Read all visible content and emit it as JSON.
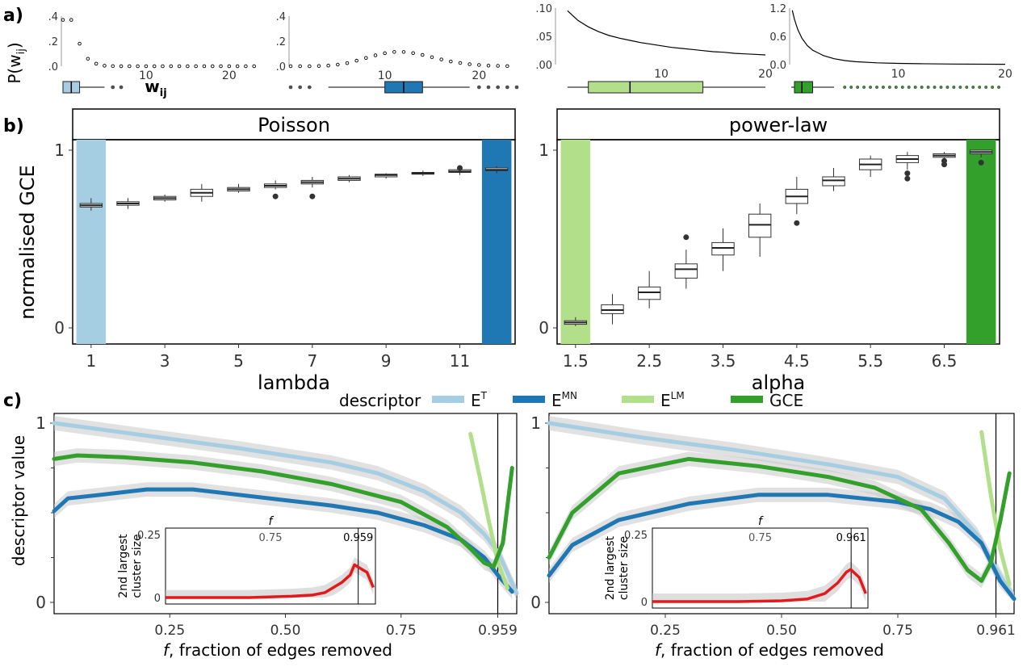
{
  "panel_labels": {
    "a": "a)",
    "b": "b)",
    "c": "c)"
  },
  "colors": {
    "ET": "#a6cee3",
    "EMN": "#1f78b4",
    "ELM": "#b2df8a",
    "GCE": "#33a02c",
    "inset": "#e31a1c",
    "band": "#c8c8c8"
  },
  "chart_data": [
    {
      "id": "a1",
      "type": "scatter",
      "x": [
        0,
        1,
        2,
        3,
        4,
        5,
        6,
        7,
        8,
        9,
        10,
        11,
        12,
        13,
        14,
        15,
        16,
        17,
        18,
        19,
        20,
        21,
        22,
        23
      ],
      "values": [
        0.37,
        0.37,
        0.18,
        0.06,
        0.02,
        0.004,
        0.001,
        0,
        0,
        0,
        0,
        0,
        0,
        0,
        0,
        0,
        0,
        0,
        0,
        0,
        0,
        0,
        0,
        0
      ],
      "ylim": [
        0,
        0.4
      ],
      "xlim": [
        0,
        24
      ],
      "yticks": [
        ".0",
        ".2",
        ".4"
      ],
      "xticks": [
        "10",
        "20"
      ],
      "ylabel": "P(w_ij)",
      "xlabel": "w_ij",
      "box": {
        "q1": 0,
        "median": 1,
        "q3": 2,
        "whisker_hi": 5,
        "outliers": [
          6,
          7
        ]
      }
    },
    {
      "id": "a2",
      "type": "scatter",
      "x": [
        0,
        1,
        2,
        3,
        4,
        5,
        6,
        7,
        8,
        9,
        10,
        11,
        12,
        13,
        14,
        15,
        16,
        17,
        18,
        19,
        20,
        21,
        22,
        23
      ],
      "values": [
        0,
        0,
        0,
        0.002,
        0.005,
        0.013,
        0.025,
        0.044,
        0.066,
        0.087,
        0.104,
        0.114,
        0.114,
        0.105,
        0.09,
        0.072,
        0.054,
        0.038,
        0.026,
        0.016,
        0.01,
        0.005,
        0.003,
        0.001
      ],
      "ylim": [
        0,
        0.4
      ],
      "xlim": [
        0,
        24
      ],
      "yticks": [
        ".0",
        ".2",
        ".4"
      ],
      "xticks": [
        "10",
        "20"
      ],
      "box": {
        "q1": 10,
        "median": 12,
        "q3": 14,
        "whisker_lo": 4,
        "whisker_hi": 19,
        "outliers": [
          0,
          1,
          2,
          20,
          21,
          22,
          23,
          24
        ]
      }
    },
    {
      "id": "a3",
      "type": "line",
      "x": [
        1,
        2,
        3,
        4,
        5,
        6,
        7,
        8,
        9,
        10,
        11,
        12,
        13,
        14,
        15,
        16,
        17,
        18,
        19,
        20
      ],
      "values": [
        0.1,
        0.082,
        0.07,
        0.061,
        0.054,
        0.049,
        0.045,
        0.041,
        0.038,
        0.035,
        0.032,
        0.03,
        0.028,
        0.026,
        0.024,
        0.023,
        0.021,
        0.02,
        0.019,
        0.018
      ],
      "ylim": [
        0,
        0.105
      ],
      "xlim": [
        0,
        20
      ],
      "yticks": [
        ".00",
        ".05",
        ".10"
      ],
      "xticks": [
        "10",
        "20"
      ],
      "box": {
        "q1": 3,
        "median": 7,
        "q3": 14,
        "whisker_lo": 1,
        "whisker_hi": 20,
        "outliers": []
      }
    },
    {
      "id": "a4",
      "type": "line",
      "x": [
        0.1,
        0.3,
        0.6,
        1,
        1.5,
        2,
        3,
        4,
        5,
        6,
        8,
        10,
        12,
        15,
        20
      ],
      "values": [
        1.2,
        1.0,
        0.78,
        0.58,
        0.42,
        0.32,
        0.2,
        0.13,
        0.09,
        0.065,
        0.04,
        0.027,
        0.02,
        0.013,
        0.008
      ],
      "ylim": [
        0,
        1.25
      ],
      "xlim": [
        0,
        20
      ],
      "yticks": [
        "0.0",
        "0.6",
        "1.2"
      ],
      "xticks": [
        "10",
        "20"
      ],
      "box": {
        "q1": 0.3,
        "median": 1,
        "q3": 2,
        "whisker_lo": 0,
        "whisker_hi": 4,
        "outliers": [
          5,
          5.6,
          6.2,
          6.8,
          7.4,
          8,
          8.6,
          9.2,
          9.8,
          10.4,
          11,
          11.6,
          12.2,
          12.8,
          13.4,
          14,
          14.6,
          15.2,
          15.8,
          16.4,
          17,
          17.6,
          18.2,
          18.8,
          19.4
        ]
      }
    },
    {
      "id": "b1",
      "type": "bar",
      "title": "Poisson",
      "xlabel": "lambda",
      "ylabel": "normalised GCE",
      "categories": [
        "1",
        "2",
        "3",
        "4",
        "5",
        "6",
        "7",
        "8",
        "9",
        "10",
        "11",
        "12"
      ],
      "xticks": [
        "1",
        "3",
        "5",
        "7",
        "9",
        "11"
      ],
      "yticks": [
        "0",
        "1"
      ],
      "ylim": [
        0,
        1
      ],
      "series": [
        {
          "stat": "median",
          "values": [
            0.69,
            0.7,
            0.73,
            0.76,
            0.78,
            0.8,
            0.82,
            0.84,
            0.86,
            0.87,
            0.88,
            0.89
          ]
        },
        {
          "stat": "q1",
          "values": [
            0.68,
            0.69,
            0.72,
            0.74,
            0.77,
            0.79,
            0.81,
            0.83,
            0.85,
            0.865,
            0.875,
            0.885
          ]
        },
        {
          "stat": "q3",
          "values": [
            0.7,
            0.71,
            0.74,
            0.78,
            0.79,
            0.81,
            0.83,
            0.85,
            0.865,
            0.875,
            0.89,
            0.9
          ]
        },
        {
          "stat": "whisker_lo",
          "values": [
            0.66,
            0.67,
            0.71,
            0.71,
            0.76,
            0.78,
            0.79,
            0.82,
            0.84,
            0.855,
            0.86,
            0.87
          ]
        },
        {
          "stat": "whisker_hi",
          "values": [
            0.73,
            0.73,
            0.75,
            0.81,
            0.81,
            0.83,
            0.85,
            0.86,
            0.87,
            0.885,
            0.9,
            0.91
          ]
        }
      ],
      "outliers": [
        [
          5,
          0.74
        ],
        [
          6,
          0.74
        ],
        [
          10,
          0.9
        ]
      ],
      "highlight": [
        {
          "category": "1",
          "color": "ET"
        },
        {
          "category": "12",
          "color": "EMN"
        }
      ]
    },
    {
      "id": "b2",
      "type": "bar",
      "title": "power-law",
      "xlabel": "alpha",
      "categories": [
        "1.5",
        "2",
        "2.5",
        "3",
        "3.5",
        "4",
        "4.5",
        "5",
        "5.5",
        "6",
        "6.5",
        "7"
      ],
      "xticks": [
        "1.5",
        "2.5",
        "3.5",
        "4.5",
        "5.5",
        "6.5"
      ],
      "yticks": [
        "0",
        "1"
      ],
      "ylim": [
        0,
        1
      ],
      "series": [
        {
          "stat": "median",
          "values": [
            0.03,
            0.1,
            0.2,
            0.33,
            0.45,
            0.58,
            0.74,
            0.83,
            0.92,
            0.95,
            0.97,
            0.99
          ]
        },
        {
          "stat": "q1",
          "values": [
            0.02,
            0.08,
            0.16,
            0.28,
            0.41,
            0.51,
            0.7,
            0.8,
            0.89,
            0.93,
            0.96,
            0.98
          ]
        },
        {
          "stat": "q3",
          "values": [
            0.04,
            0.13,
            0.23,
            0.36,
            0.48,
            0.64,
            0.78,
            0.85,
            0.95,
            0.97,
            0.98,
            1.0
          ]
        },
        {
          "stat": "whisker_lo",
          "values": [
            0.01,
            0.02,
            0.11,
            0.22,
            0.32,
            0.4,
            0.64,
            0.77,
            0.85,
            0.89,
            0.94,
            0.96
          ]
        },
        {
          "stat": "whisker_hi",
          "values": [
            0.06,
            0.19,
            0.32,
            0.44,
            0.56,
            0.7,
            0.85,
            0.9,
            0.97,
            0.99,
            0.99,
            1.0
          ]
        }
      ],
      "outliers": [
        [
          3,
          0.51
        ],
        [
          6,
          0.59
        ],
        [
          9,
          0.84
        ],
        [
          9,
          0.87
        ],
        [
          10,
          0.92
        ],
        [
          10,
          0.94
        ],
        [
          11,
          0.93
        ]
      ],
      "highlight": [
        {
          "category": "1.5",
          "color": "ELM"
        },
        {
          "category": "7",
          "color": "GCE"
        }
      ]
    },
    {
      "id": "c1",
      "type": "line",
      "xlabel": "f, fraction of edges removed",
      "ylabel": "descriptor value",
      "xlim": [
        0,
        1.0
      ],
      "ylim": [
        0,
        1
      ],
      "xticks": [
        "0.25",
        "0.50",
        "0.75",
        "0.959"
      ],
      "yticks": [
        "0",
        "1"
      ],
      "critical_f": 0.959,
      "series": [
        {
          "name": "E^T",
          "x": [
            0,
            0.2,
            0.4,
            0.6,
            0.7,
            0.8,
            0.88,
            0.93,
            0.96,
            1.0
          ],
          "values": [
            1,
            0.93,
            0.86,
            0.78,
            0.72,
            0.62,
            0.5,
            0.38,
            0.28,
            0.05
          ]
        },
        {
          "name": "E^MN",
          "x": [
            0,
            0.03,
            0.1,
            0.2,
            0.3,
            0.4,
            0.5,
            0.6,
            0.7,
            0.8,
            0.88,
            0.93,
            0.96,
            0.99
          ],
          "values": [
            0.51,
            0.58,
            0.6,
            0.63,
            0.63,
            0.6,
            0.57,
            0.54,
            0.5,
            0.43,
            0.35,
            0.25,
            0.15,
            0.06
          ]
        },
        {
          "name": "E^LM",
          "x": [
            0.9,
            0.92,
            0.94,
            0.96,
            0.98
          ],
          "values": [
            0.94,
            0.7,
            0.45,
            0.22,
            0.08
          ]
        },
        {
          "name": "GCE",
          "x": [
            0,
            0.05,
            0.15,
            0.3,
            0.45,
            0.6,
            0.75,
            0.85,
            0.9,
            0.93,
            0.95,
            0.97,
            0.99
          ],
          "values": [
            0.8,
            0.82,
            0.81,
            0.78,
            0.73,
            0.66,
            0.56,
            0.42,
            0.3,
            0.22,
            0.2,
            0.33,
            0.75
          ]
        }
      ],
      "inset": {
        "ylabel": "2nd largest cluster size",
        "xlabel": "f",
        "xlim": [
          0.5,
          1.0
        ],
        "ylim": [
          0,
          0.25
        ],
        "xticks": [
          "0.75",
          "0.959"
        ],
        "yticks": [
          "0",
          "0.25"
        ],
        "x": [
          0.5,
          0.6,
          0.7,
          0.8,
          0.85,
          0.88,
          0.9,
          0.92,
          0.94,
          0.95,
          0.96,
          0.98,
          0.995
        ],
        "values": [
          0,
          0,
          0,
          0.005,
          0.01,
          0.02,
          0.04,
          0.06,
          0.09,
          0.13,
          0.12,
          0.1,
          0.04
        ]
      }
    },
    {
      "id": "c2",
      "type": "line",
      "xlabel": "f, fraction of edges removed",
      "xlim": [
        0,
        1.0
      ],
      "ylim": [
        0,
        1
      ],
      "xticks": [
        "0.25",
        "0.50",
        "0.75",
        "0.961"
      ],
      "yticks": [
        "0",
        "1"
      ],
      "critical_f": 0.961,
      "series": [
        {
          "name": "E^T",
          "x": [
            0,
            0.2,
            0.4,
            0.6,
            0.75,
            0.85,
            0.92,
            0.97,
            1.0
          ],
          "values": [
            1,
            0.92,
            0.85,
            0.77,
            0.7,
            0.58,
            0.38,
            0.15,
            0.02
          ]
        },
        {
          "name": "E^MN",
          "x": [
            0,
            0.05,
            0.15,
            0.3,
            0.45,
            0.6,
            0.75,
            0.82,
            0.88,
            0.93,
            0.97,
            1.0
          ],
          "values": [
            0.15,
            0.32,
            0.46,
            0.55,
            0.6,
            0.6,
            0.56,
            0.52,
            0.45,
            0.33,
            0.12,
            0.02
          ]
        },
        {
          "name": "E^LM",
          "x": [
            0.93,
            0.95,
            0.97,
            0.99
          ],
          "values": [
            0.95,
            0.6,
            0.3,
            0.1
          ]
        },
        {
          "name": "GCE",
          "x": [
            0,
            0.05,
            0.15,
            0.3,
            0.45,
            0.6,
            0.7,
            0.8,
            0.86,
            0.9,
            0.93,
            0.95,
            0.97,
            0.99
          ],
          "values": [
            0.25,
            0.5,
            0.72,
            0.8,
            0.76,
            0.7,
            0.64,
            0.52,
            0.33,
            0.18,
            0.12,
            0.22,
            0.45,
            0.72
          ]
        }
      ],
      "inset": {
        "ylabel": "2nd largest cluster size",
        "xlabel": "f",
        "xlim": [
          0.5,
          1.0
        ],
        "ylim": [
          0,
          0.25
        ],
        "xticks": [
          "0.75",
          "0.961"
        ],
        "yticks": [
          "0",
          "0.25"
        ],
        "x": [
          0.5,
          0.6,
          0.7,
          0.8,
          0.86,
          0.9,
          0.93,
          0.95,
          0.96,
          0.98,
          0.995
        ],
        "values": [
          0,
          0,
          0,
          0.003,
          0.01,
          0.03,
          0.07,
          0.11,
          0.12,
          0.09,
          0.03
        ]
      }
    }
  ],
  "legend": {
    "title": "descriptor",
    "items": [
      {
        "label": "E",
        "sup": "T",
        "color": "ET"
      },
      {
        "label": "E",
        "sup": "MN",
        "color": "EMN"
      },
      {
        "label": "E",
        "sup": "LM",
        "color": "ELM"
      },
      {
        "label": "GCE",
        "sup": "",
        "color": "GCE"
      }
    ]
  }
}
